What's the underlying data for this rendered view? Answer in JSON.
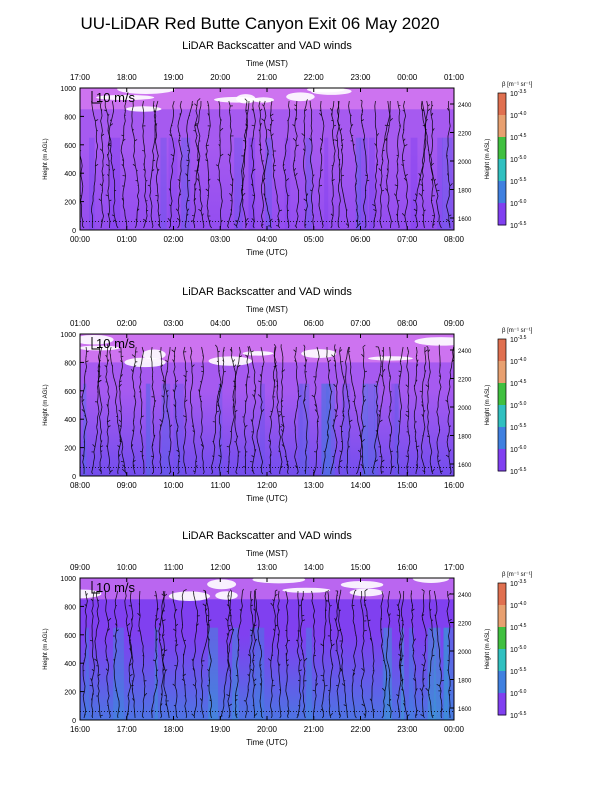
{
  "title": "UU-LiDAR Red Butte Canyon Exit 06 May 2020",
  "colorbar": {
    "label": "β [m⁻¹ sr⁻¹]",
    "exponents": [
      "-3.5",
      "-4.0",
      "-4.5",
      "-5.0",
      "-5.5",
      "-6.0",
      "-6.5"
    ],
    "colors": [
      "#e07050",
      "#e8a070",
      "#40c040",
      "#30c0c0",
      "#4080e0",
      "#8040f0",
      "#e080f0"
    ]
  },
  "chart_data": [
    {
      "type": "heatmap",
      "title": "LiDAR Backscatter and VAD winds",
      "top_axis_label": "Time (MST)",
      "top_ticks": [
        "17:00",
        "18:00",
        "19:00",
        "20:00",
        "21:00",
        "22:00",
        "23:00",
        "00:00",
        "01:00"
      ],
      "xlabel": "Time (UTC)",
      "x_ticks": [
        "00:00",
        "01:00",
        "02:00",
        "03:00",
        "04:00",
        "05:00",
        "06:00",
        "07:00",
        "08:00"
      ],
      "ylabel": "Height (m AGL)",
      "y_ticks": [
        "0",
        "200",
        "400",
        "600",
        "800",
        "1000"
      ],
      "ylim": [
        0,
        1000
      ],
      "right_ylabel": "Height (m ASL)",
      "right_ticks": [
        "1600",
        "1800",
        "2000",
        "2200",
        "2400"
      ],
      "scale_label": "10 m/s",
      "background_exponent": -6.2,
      "band_exponent": -6.4,
      "band_range_m": [
        850,
        1000
      ],
      "lower_exponent": -6.1
    },
    {
      "type": "heatmap",
      "title": "LiDAR Backscatter and VAD winds",
      "top_axis_label": "Time (MST)",
      "top_ticks": [
        "01:00",
        "02:00",
        "03:00",
        "04:00",
        "05:00",
        "06:00",
        "07:00",
        "08:00",
        "09:00"
      ],
      "xlabel": "Time (UTC)",
      "x_ticks": [
        "08:00",
        "09:00",
        "10:00",
        "11:00",
        "12:00",
        "13:00",
        "14:00",
        "15:00",
        "16:00"
      ],
      "ylabel": "Height (m AGL)",
      "y_ticks": [
        "0",
        "200",
        "400",
        "600",
        "800",
        "1000"
      ],
      "ylim": [
        0,
        1000
      ],
      "right_ylabel": "Height (m ASL)",
      "right_ticks": [
        "1600",
        "1800",
        "2000",
        "2200",
        "2400"
      ],
      "scale_label": "10 m/s",
      "background_exponent": -6.2,
      "band_exponent": -6.4,
      "band_range_m": [
        800,
        1000
      ],
      "lower_exponent": -5.9
    },
    {
      "type": "heatmap",
      "title": "LiDAR Backscatter and VAD winds",
      "top_axis_label": "Time (MST)",
      "top_ticks": [
        "09:00",
        "10:00",
        "11:00",
        "12:00",
        "13:00",
        "14:00",
        "15:00",
        "16:00",
        "17:00"
      ],
      "xlabel": "Time (UTC)",
      "x_ticks": [
        "16:00",
        "17:00",
        "18:00",
        "19:00",
        "20:00",
        "21:00",
        "22:00",
        "23:00",
        "00:00"
      ],
      "ylabel": "Height (m AGL)",
      "y_ticks": [
        "0",
        "200",
        "400",
        "600",
        "800",
        "1000"
      ],
      "ylim": [
        0,
        1000
      ],
      "right_ylabel": "Height (m ASL)",
      "right_ticks": [
        "1600",
        "1800",
        "2000",
        "2200",
        "2400"
      ],
      "scale_label": "10 m/s",
      "background_exponent": -6.0,
      "band_exponent": -6.3,
      "band_range_m": [
        850,
        1000
      ],
      "lower_exponent": -5.6
    }
  ]
}
